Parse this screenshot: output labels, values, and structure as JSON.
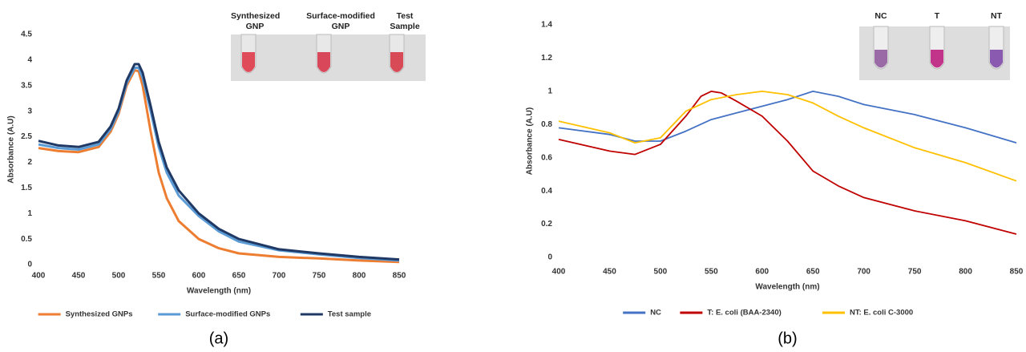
{
  "chart_data": [
    {
      "type": "line",
      "xlabel": "Wavelength (nm)",
      "ylabel": "Absorbance (A.U)",
      "caption": "(a)",
      "inset_labels": [
        "Synthesized GNP",
        "Surface-modified GNP",
        "Test Sample"
      ],
      "xlim": [
        400,
        850
      ],
      "xticks": [
        400,
        450,
        500,
        550,
        600,
        650,
        700,
        750,
        800,
        850
      ],
      "ylim": [
        0,
        4.5
      ],
      "yticks": [
        0,
        0.5,
        1,
        1.5,
        2,
        2.5,
        3,
        3.5,
        4,
        4.5
      ],
      "grid": false,
      "series": [
        {
          "name": "Synthesized GNPs",
          "color": "#ed7d31",
          "x": [
            400,
            425,
            450,
            475,
            490,
            500,
            510,
            520,
            525,
            530,
            540,
            550,
            560,
            575,
            600,
            625,
            650,
            700,
            750,
            800,
            850
          ],
          "values": [
            2.28,
            2.22,
            2.2,
            2.3,
            2.6,
            2.95,
            3.5,
            3.8,
            3.78,
            3.5,
            2.6,
            1.8,
            1.3,
            0.85,
            0.5,
            0.32,
            0.22,
            0.15,
            0.12,
            0.08,
            0.05
          ]
        },
        {
          "name": "Surface-modified GNPs",
          "color": "#5b9bd5",
          "x": [
            400,
            425,
            450,
            475,
            490,
            500,
            510,
            520,
            525,
            530,
            540,
            550,
            560,
            575,
            600,
            625,
            650,
            700,
            750,
            800,
            850
          ],
          "values": [
            2.35,
            2.28,
            2.25,
            2.35,
            2.65,
            3.0,
            3.55,
            3.85,
            3.85,
            3.65,
            3.0,
            2.3,
            1.8,
            1.35,
            0.95,
            0.65,
            0.45,
            0.28,
            0.2,
            0.13,
            0.08
          ]
        },
        {
          "name": "Test sample",
          "color": "#1f3864",
          "x": [
            400,
            425,
            450,
            475,
            490,
            500,
            510,
            520,
            525,
            530,
            540,
            550,
            560,
            575,
            600,
            625,
            650,
            700,
            750,
            800,
            850
          ],
          "values": [
            2.42,
            2.33,
            2.3,
            2.4,
            2.7,
            3.05,
            3.6,
            3.92,
            3.92,
            3.75,
            3.1,
            2.4,
            1.9,
            1.45,
            1.0,
            0.7,
            0.5,
            0.3,
            0.22,
            0.15,
            0.1
          ]
        }
      ]
    },
    {
      "type": "line",
      "xlabel": "Wavelength (nm)",
      "ylabel": "Absorbance (A.U)",
      "caption": "(b)",
      "inset_labels": [
        "NC",
        "T",
        "NT"
      ],
      "xlim": [
        400,
        850
      ],
      "xticks": [
        400,
        450,
        500,
        550,
        600,
        650,
        700,
        750,
        800,
        850
      ],
      "ylim": [
        0,
        1.4
      ],
      "yticks": [
        0,
        0.2,
        0.4,
        0.6,
        0.8,
        1,
        1.2,
        1.4
      ],
      "grid": false,
      "series": [
        {
          "name": "NC",
          "color": "#4472c4",
          "x": [
            400,
            450,
            475,
            500,
            525,
            550,
            575,
            600,
            625,
            650,
            675,
            700,
            750,
            800,
            850
          ],
          "values": [
            0.78,
            0.74,
            0.7,
            0.7,
            0.76,
            0.83,
            0.87,
            0.91,
            0.95,
            1.0,
            0.97,
            0.92,
            0.86,
            0.78,
            0.69
          ]
        },
        {
          "name": "T: E. coli (BAA-2340)",
          "color": "#c00000",
          "x": [
            400,
            450,
            475,
            500,
            525,
            540,
            550,
            560,
            575,
            600,
            625,
            650,
            675,
            700,
            750,
            800,
            850
          ],
          "values": [
            0.71,
            0.64,
            0.62,
            0.68,
            0.85,
            0.97,
            1.0,
            0.99,
            0.94,
            0.85,
            0.7,
            0.52,
            0.43,
            0.36,
            0.28,
            0.22,
            0.14
          ]
        },
        {
          "name": "NT: E. coli C-3000",
          "color": "#ffc000",
          "x": [
            400,
            450,
            475,
            500,
            525,
            550,
            575,
            600,
            625,
            650,
            675,
            700,
            750,
            800,
            850
          ],
          "values": [
            0.82,
            0.75,
            0.69,
            0.72,
            0.88,
            0.95,
            0.98,
            1.0,
            0.98,
            0.93,
            0.85,
            0.78,
            0.66,
            0.57,
            0.46
          ]
        }
      ]
    }
  ]
}
